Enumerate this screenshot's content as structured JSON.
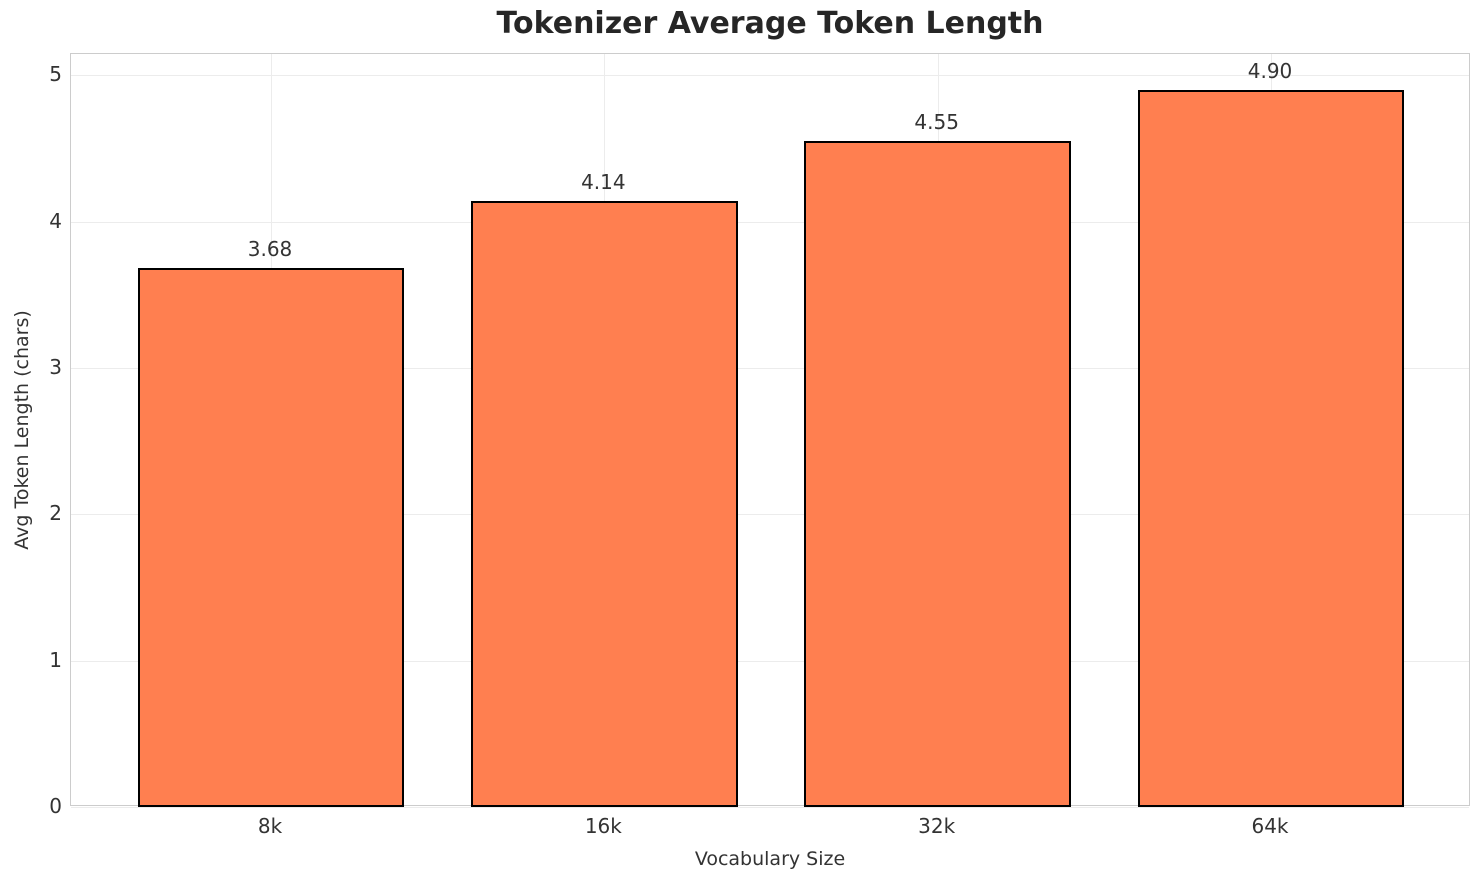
{
  "chart_data": {
    "type": "bar",
    "title": "Tokenizer Average Token Length",
    "xlabel": "Vocabulary Size",
    "ylabel": "Avg Token Length (chars)",
    "categories": [
      "8k",
      "16k",
      "32k",
      "64k"
    ],
    "values": [
      3.68,
      4.14,
      4.55,
      4.9
    ],
    "value_labels": [
      "3.68",
      "4.14",
      "4.55",
      "4.90"
    ],
    "yticks": [
      0,
      1,
      2,
      3,
      4,
      5
    ],
    "ytick_labels": [
      "0",
      "1",
      "2",
      "3",
      "4",
      "5"
    ],
    "ylim": [
      0,
      5.145
    ],
    "grid": true,
    "legend": null,
    "colors": {
      "bar_fill": "#ff7f50",
      "bar_edge": "#000000",
      "grid": "#ececec",
      "spine": "#cccccc",
      "title_text": "#262626",
      "tick_text": "#333333"
    }
  }
}
